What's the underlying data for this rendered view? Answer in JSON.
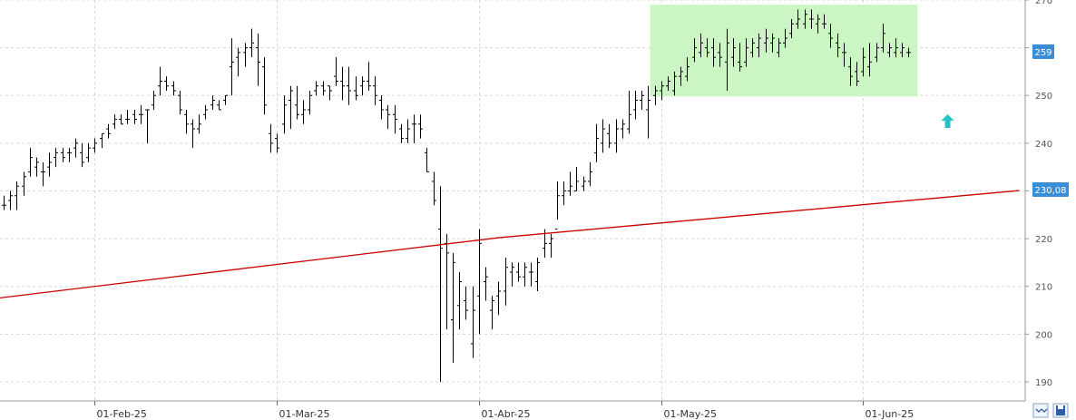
{
  "chart_data": {
    "type": "ohlc",
    "ylim": [
      186,
      270
    ],
    "grid": true,
    "y_ticks": [
      "190",
      "200",
      "210",
      "220",
      "230",
      "240",
      "250",
      "260",
      "270"
    ],
    "x_ticks": [
      "01-Feb-25",
      "01-Mar-25",
      "01-Abr-25",
      "01-May-25",
      "01-Jun-25"
    ],
    "last_price_label": "259",
    "ma_label": "230,08",
    "colors": {
      "bars": "#000000",
      "ma_line": "#cc0000",
      "highlight_fill": "#ccf5c4",
      "price_tag": "#3a8ed8",
      "arrow": "#22c6c6",
      "grid": "#d8d8d8"
    },
    "highlight_zone": {
      "y_low": 249.8,
      "y_high": 269
    },
    "ma_series": {
      "name": "",
      "points": [
        [
          0,
          207.6
        ],
        [
          76,
          220.2
        ],
        [
          156,
          230.08
        ]
      ]
    },
    "bars": [
      [
        227,
        229,
        226,
        227
      ],
      [
        228,
        230,
        226,
        229
      ],
      [
        229,
        232,
        226,
        231
      ],
      [
        231,
        234,
        229,
        233
      ],
      [
        234,
        239,
        233,
        237
      ],
      [
        235,
        237,
        233,
        236
      ],
      [
        234,
        236,
        231,
        234
      ],
      [
        235,
        238,
        233,
        236
      ],
      [
        237,
        239,
        235,
        238
      ],
      [
        238,
        239,
        236,
        237
      ],
      [
        238,
        239,
        236,
        238
      ],
      [
        239,
        241,
        237,
        240
      ],
      [
        238,
        240,
        235,
        236
      ],
      [
        237,
        240,
        236,
        239
      ],
      [
        239,
        241,
        238,
        240
      ],
      [
        241,
        242,
        239,
        242
      ],
      [
        243,
        244,
        241,
        242
      ],
      [
        244,
        246,
        243,
        245
      ],
      [
        245,
        246,
        244,
        244
      ],
      [
        245,
        247,
        244,
        245
      ],
      [
        246,
        247,
        244,
        245
      ],
      [
        246,
        248,
        244,
        246
      ],
      [
        247,
        247,
        240,
        247
      ],
      [
        248,
        251,
        247,
        250
      ],
      [
        252,
        256,
        250,
        253
      ],
      [
        253,
        254,
        251,
        252
      ],
      [
        252,
        253,
        250,
        251
      ],
      [
        250,
        251,
        246,
        247
      ],
      [
        246,
        247,
        242,
        244
      ],
      [
        244,
        245,
        239,
        243
      ],
      [
        243,
        246,
        242,
        244
      ],
      [
        246,
        248,
        245,
        247
      ],
      [
        248,
        250,
        247,
        249
      ],
      [
        248,
        249,
        247,
        247
      ],
      [
        249,
        250,
        248,
        250
      ],
      [
        256,
        262,
        250,
        257
      ],
      [
        258,
        260,
        254,
        259
      ],
      [
        259,
        261,
        256,
        260
      ],
      [
        260,
        264,
        258,
        261
      ],
      [
        260,
        263,
        252,
        257
      ],
      [
        256,
        258,
        246,
        248
      ],
      [
        242,
        244,
        238,
        240
      ],
      [
        241,
        242,
        238,
        239
      ],
      [
        244,
        250,
        242,
        248
      ],
      [
        249,
        252,
        243,
        251
      ],
      [
        248,
        252,
        245,
        246
      ],
      [
        246,
        249,
        244,
        247
      ],
      [
        247,
        251,
        246,
        250
      ],
      [
        251,
        253,
        250,
        252
      ],
      [
        252,
        253,
        250,
        251
      ],
      [
        252,
        252,
        249,
        251
      ],
      [
        254,
        258,
        252,
        253
      ],
      [
        253,
        256,
        249,
        252
      ],
      [
        252,
        256,
        248,
        251
      ],
      [
        251,
        254,
        249,
        250
      ],
      [
        252,
        254,
        250,
        253
      ],
      [
        253,
        257,
        251,
        252
      ],
      [
        252,
        254,
        248,
        250
      ],
      [
        249,
        250,
        245,
        247
      ],
      [
        247,
        248,
        243,
        246
      ],
      [
        246,
        248,
        242,
        245
      ],
      [
        243,
        244,
        240,
        241
      ],
      [
        241,
        245,
        240,
        243
      ],
      [
        244,
        246,
        240,
        244
      ],
      [
        244,
        246,
        241,
        243
      ],
      [
        238,
        239,
        234,
        234
      ],
      [
        232,
        234,
        227,
        228
      ],
      [
        222,
        231,
        190,
        218
      ],
      [
        219,
        221,
        201,
        217
      ],
      [
        203,
        217,
        194,
        215
      ],
      [
        206,
        213,
        201,
        211
      ],
      [
        207,
        210,
        203,
        205
      ],
      [
        198,
        210,
        195,
        205
      ],
      [
        208,
        222,
        200,
        219
      ],
      [
        211,
        214,
        207,
        212
      ],
      [
        205,
        208,
        201,
        207
      ],
      [
        208,
        211,
        204,
        209
      ],
      [
        209,
        216,
        206,
        214
      ],
      [
        213,
        215,
        210,
        214
      ],
      [
        213,
        215,
        211,
        212
      ],
      [
        212,
        215,
        210,
        214
      ],
      [
        213,
        215,
        210,
        213
      ],
      [
        211,
        216,
        209,
        215
      ],
      [
        218,
        222,
        216,
        219
      ],
      [
        219,
        221,
        216,
        220
      ],
      [
        222,
        232,
        224,
        229
      ],
      [
        229,
        232,
        227,
        230
      ],
      [
        230,
        234,
        229,
        231
      ],
      [
        230,
        235,
        230,
        232
      ],
      [
        231,
        233,
        230,
        232
      ],
      [
        232,
        236,
        231,
        234
      ],
      [
        238,
        244,
        236,
        241
      ],
      [
        240,
        245,
        238,
        243
      ],
      [
        242,
        244,
        239,
        240
      ],
      [
        240,
        245,
        238,
        243
      ],
      [
        243,
        245,
        241,
        244
      ],
      [
        243,
        251,
        242,
        246
      ],
      [
        247,
        251,
        245,
        249
      ],
      [
        249,
        251,
        247,
        250
      ],
      [
        247,
        252,
        241,
        249
      ],
      [
        250,
        252,
        248,
        251
      ],
      [
        251,
        253,
        249,
        252
      ],
      [
        252,
        254,
        251,
        253
      ],
      [
        251,
        255,
        250,
        254
      ],
      [
        254,
        256,
        252,
        255
      ],
      [
        254,
        258,
        253,
        256
      ],
      [
        258,
        262,
        257,
        260
      ],
      [
        259,
        263,
        258,
        261
      ],
      [
        260,
        262,
        258,
        259
      ],
      [
        260,
        262,
        256,
        258
      ],
      [
        259,
        261,
        256,
        258
      ],
      [
        257,
        264,
        251,
        261
      ],
      [
        258,
        262,
        256,
        260
      ],
      [
        257,
        261,
        255,
        256
      ],
      [
        257,
        262,
        256,
        260
      ],
      [
        259,
        262,
        258,
        261
      ],
      [
        260,
        263,
        258,
        262
      ],
      [
        261,
        264,
        259,
        262
      ],
      [
        261,
        263,
        259,
        262
      ],
      [
        259,
        262,
        258,
        261
      ],
      [
        261,
        264,
        260,
        262
      ],
      [
        263,
        266,
        262,
        265
      ],
      [
        265,
        268,
        264,
        266
      ],
      [
        265,
        268,
        264,
        267
      ],
      [
        266,
        268,
        264,
        266
      ],
      [
        265,
        267,
        263,
        266
      ],
      [
        265,
        267,
        264,
        265
      ],
      [
        263,
        265,
        260,
        262
      ],
      [
        261,
        263,
        258,
        260
      ],
      [
        259,
        261,
        256,
        259
      ],
      [
        256,
        258,
        252,
        254
      ],
      [
        255,
        257,
        252,
        253
      ],
      [
        255,
        260,
        254,
        258
      ],
      [
        256,
        261,
        254,
        257
      ],
      [
        258,
        261,
        257,
        260
      ],
      [
        260,
        265,
        259,
        263
      ],
      [
        259,
        261,
        258,
        260
      ],
      [
        259,
        262,
        258,
        260
      ],
      [
        259,
        261,
        258,
        260
      ],
      [
        259,
        260,
        258,
        259
      ]
    ]
  }
}
